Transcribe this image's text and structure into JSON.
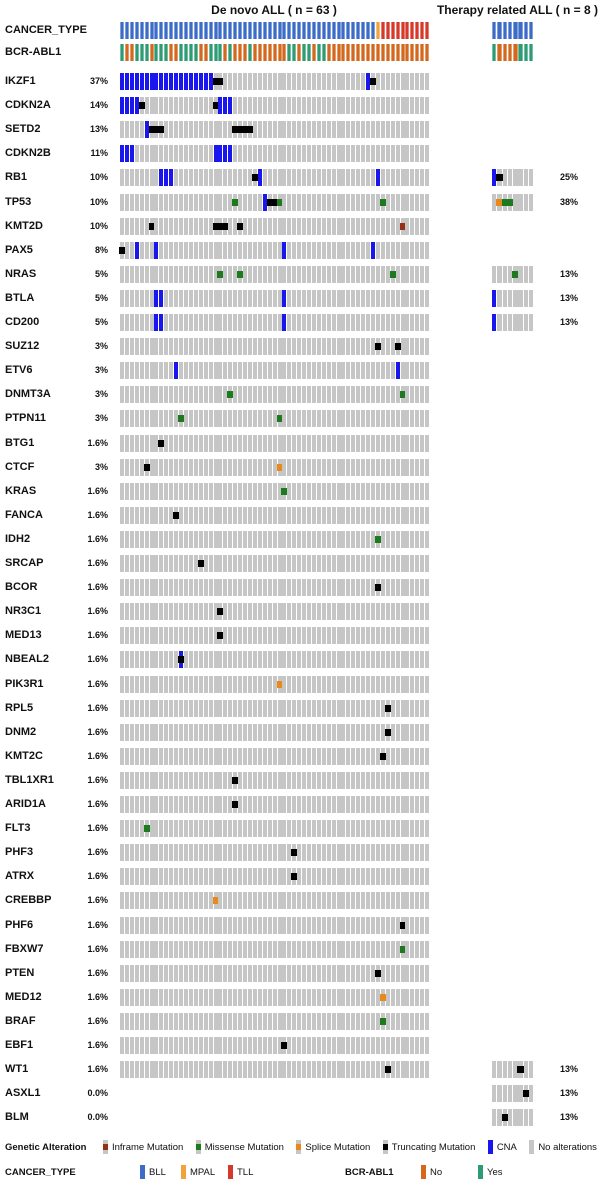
{
  "chart_data": {
    "type": "heatmap",
    "subtype": "oncoprint",
    "panels": [
      {
        "title": "De novo ALL ( n = 63 )",
        "n": 63
      },
      {
        "title": "Therapy related ALL ( n = 8 )",
        "n": 8
      }
    ],
    "colors": {
      "bll": "#3D6CC7",
      "mpal": "#F0A23C",
      "tll": "#D5392B",
      "bcr_no": "#D2691E",
      "bcr_yes": "#2D9C74",
      "cna": "#1A17EE",
      "missense": "#1E7A1E",
      "splice": "#E8891D",
      "inframe": "#963117",
      "truncating": "#000000",
      "none": "#C6C6C6"
    },
    "pattern_key": {
      "B": "bll",
      "M": "mpal",
      "T": "tll",
      "G": "bcr_yes",
      "O": "bcr_no"
    },
    "clinical_tracks": [
      {
        "label": "CANCER_TYPE",
        "left": "BBBBBBBBBBBBBBBBBBBBBBBBBBBBBBBBBBBBBBBBBBBBBBBBBBBBMTTTTTTTTTT",
        "right": "BBBBBBBB"
      },
      {
        "label": "BCR-ABL1",
        "left": "GOOGGGOGGGOOGGGGOOGGGOGOOOGOOOOOOOGGOGGOGGOOOOOOOOOOOOOOOOOOOOO",
        "right": "GOOOOGGG"
      }
    ],
    "genes": [
      {
        "name": "IKZF1",
        "pct": "37%",
        "left_grid": true,
        "alts": {
          "cna": [
            1,
            2,
            3,
            4,
            5,
            6,
            7,
            8,
            9,
            10,
            11,
            12,
            13,
            14,
            15,
            16,
            17,
            18,
            19,
            51
          ],
          "trunc": [
            20,
            21,
            52
          ]
        },
        "right": null
      },
      {
        "name": "CDKN2A",
        "pct": "14%",
        "left_grid": true,
        "alts": {
          "cna": [
            1,
            2,
            3,
            4,
            21,
            22,
            23
          ],
          "trunc": [
            5,
            20
          ]
        },
        "right": null
      },
      {
        "name": "SETD2",
        "pct": "13%",
        "left_grid": true,
        "alts": {
          "cna": [
            6
          ],
          "trunc": [
            7,
            8,
            9,
            24,
            25,
            26,
            27
          ]
        },
        "right": null
      },
      {
        "name": "CDKN2B",
        "pct": "11%",
        "left_grid": true,
        "alts": {
          "cna": [
            1,
            2,
            3,
            20,
            21,
            22,
            23
          ]
        },
        "right": null
      },
      {
        "name": "RB1",
        "pct": "10%",
        "left_grid": true,
        "alts": {
          "cna": [
            9,
            10,
            11,
            29,
            53
          ],
          "trunc": [
            28
          ]
        },
        "right": {
          "pct": "25%",
          "alts": {
            "cna": [
              1
            ],
            "trunc": [
              2
            ]
          }
        }
      },
      {
        "name": "TP53",
        "pct": "10%",
        "left_grid": true,
        "alts": {
          "missense": [
            24,
            33,
            54
          ],
          "cna": [
            30
          ],
          "trunc": [
            31,
            32
          ]
        },
        "right": {
          "pct": "38%",
          "alts": {
            "splice": [
              2
            ],
            "missense": [
              3,
              4
            ]
          }
        }
      },
      {
        "name": "KMT2D",
        "pct": "10%",
        "left_grid": true,
        "alts": {
          "trunc": [
            7,
            20,
            21,
            22,
            25
          ],
          "inframe": [
            58
          ]
        },
        "right": null
      },
      {
        "name": "PAX5",
        "pct": "8%",
        "left_grid": true,
        "alts": {
          "trunc": [
            1
          ],
          "cna": [
            4,
            8,
            34,
            52
          ]
        },
        "right": null
      },
      {
        "name": "NRAS",
        "pct": "5%",
        "left_grid": true,
        "alts": {
          "missense": [
            21,
            25,
            56
          ]
        },
        "right": {
          "pct": "13%",
          "alts": {
            "missense": [
              5
            ]
          }
        }
      },
      {
        "name": "BTLA",
        "pct": "5%",
        "left_grid": true,
        "alts": {
          "cna": [
            8,
            9,
            34
          ]
        },
        "right": {
          "pct": "13%",
          "alts": {
            "cna": [
              1
            ]
          }
        }
      },
      {
        "name": "CD200",
        "pct": "5%",
        "left_grid": true,
        "alts": {
          "cna": [
            8,
            9,
            34
          ]
        },
        "right": {
          "pct": "13%",
          "alts": {
            "cna": [
              1
            ]
          }
        }
      },
      {
        "name": "SUZ12",
        "pct": "3%",
        "left_grid": true,
        "alts": {
          "trunc": [
            53,
            57
          ]
        },
        "right": null
      },
      {
        "name": "ETV6",
        "pct": "3%",
        "left_grid": true,
        "alts": {
          "cna": [
            12,
            57
          ]
        },
        "right": null
      },
      {
        "name": "DNMT3A",
        "pct": "3%",
        "left_grid": true,
        "alts": {
          "missense": [
            23,
            58
          ]
        },
        "right": null
      },
      {
        "name": "PTPN11",
        "pct": "3%",
        "left_grid": true,
        "alts": {
          "missense": [
            13,
            33
          ]
        },
        "right": null
      },
      {
        "name": "BTG1",
        "pct": "1.6%",
        "left_grid": true,
        "alts": {
          "trunc": [
            9
          ]
        },
        "right": null
      },
      {
        "name": "CTCF",
        "pct": "3%",
        "left_grid": true,
        "alts": {
          "trunc": [
            6
          ],
          "splice": [
            33
          ]
        },
        "right": null
      },
      {
        "name": "KRAS",
        "pct": "1.6%",
        "left_grid": true,
        "alts": {
          "missense": [
            34
          ]
        },
        "right": null
      },
      {
        "name": "FANCA",
        "pct": "1.6%",
        "left_grid": true,
        "alts": {
          "trunc": [
            12
          ]
        },
        "right": null
      },
      {
        "name": "IDH2",
        "pct": "1.6%",
        "left_grid": true,
        "alts": {
          "missense": [
            53
          ]
        },
        "right": null
      },
      {
        "name": "SRCAP",
        "pct": "1.6%",
        "left_grid": true,
        "alts": {
          "trunc": [
            17
          ]
        },
        "right": null
      },
      {
        "name": "BCOR",
        "pct": "1.6%",
        "left_grid": true,
        "alts": {
          "trunc": [
            53
          ]
        },
        "right": null
      },
      {
        "name": "NR3C1",
        "pct": "1.6%",
        "left_grid": true,
        "alts": {
          "trunc": [
            21
          ]
        },
        "right": null
      },
      {
        "name": "MED13",
        "pct": "1.6%",
        "left_grid": true,
        "alts": {
          "trunc": [
            21
          ]
        },
        "right": null
      },
      {
        "name": "NBEAL2",
        "pct": "1.6%",
        "left_grid": true,
        "alts": {
          "cna": [
            13
          ],
          "trunc": [
            13
          ]
        },
        "right": null
      },
      {
        "name": "PIK3R1",
        "pct": "1.6%",
        "left_grid": true,
        "alts": {
          "splice": [
            33
          ]
        },
        "right": null
      },
      {
        "name": "RPL5",
        "pct": "1.6%",
        "left_grid": true,
        "alts": {
          "trunc": [
            55
          ]
        },
        "right": null
      },
      {
        "name": "DNM2",
        "pct": "1.6%",
        "left_grid": true,
        "alts": {
          "trunc": [
            55
          ]
        },
        "right": null
      },
      {
        "name": "KMT2C",
        "pct": "1.6%",
        "left_grid": true,
        "alts": {
          "trunc": [
            54
          ]
        },
        "right": null
      },
      {
        "name": "TBL1XR1",
        "pct": "1.6%",
        "left_grid": true,
        "alts": {
          "trunc": [
            24
          ]
        },
        "right": null
      },
      {
        "name": "ARID1A",
        "pct": "1.6%",
        "left_grid": true,
        "alts": {
          "trunc": [
            24
          ]
        },
        "right": null
      },
      {
        "name": "FLT3",
        "pct": "1.6%",
        "left_grid": true,
        "alts": {
          "missense": [
            6
          ]
        },
        "right": null
      },
      {
        "name": "PHF3",
        "pct": "1.6%",
        "left_grid": true,
        "alts": {
          "trunc": [
            36
          ]
        },
        "right": null
      },
      {
        "name": "ATRX",
        "pct": "1.6%",
        "left_grid": true,
        "alts": {
          "trunc": [
            36
          ]
        },
        "right": null
      },
      {
        "name": "CREBBP",
        "pct": "1.6%",
        "left_grid": true,
        "alts": {
          "splice": [
            20
          ]
        },
        "right": null
      },
      {
        "name": "PHF6",
        "pct": "1.6%",
        "left_grid": true,
        "alts": {
          "trunc": [
            58
          ]
        },
        "right": null
      },
      {
        "name": "FBXW7",
        "pct": "1.6%",
        "left_grid": true,
        "alts": {
          "missense": [
            58
          ]
        },
        "right": null
      },
      {
        "name": "PTEN",
        "pct": "1.6%",
        "left_grid": true,
        "alts": {
          "trunc": [
            53
          ]
        },
        "right": null
      },
      {
        "name": "MED12",
        "pct": "1.6%",
        "left_grid": true,
        "alts": {
          "splice": [
            54
          ]
        },
        "right": null
      },
      {
        "name": "BRAF",
        "pct": "1.6%",
        "left_grid": true,
        "alts": {
          "missense": [
            54
          ]
        },
        "right": null
      },
      {
        "name": "EBF1",
        "pct": "1.6%",
        "left_grid": true,
        "alts": {
          "trunc": [
            34
          ]
        },
        "right": null
      },
      {
        "name": "WT1",
        "pct": "1.6%",
        "left_grid": true,
        "alts": {
          "trunc": [
            55
          ]
        },
        "right": {
          "pct": "13%",
          "alts": {
            "trunc": [
              6
            ]
          }
        }
      },
      {
        "name": "ASXL1",
        "pct": "0.0%",
        "left_grid": false,
        "alts": {},
        "right": {
          "pct": "13%",
          "alts": {
            "trunc": [
              7
            ]
          }
        }
      },
      {
        "name": "BLM",
        "pct": "0.0%",
        "left_grid": false,
        "alts": {},
        "right": {
          "pct": "13%",
          "alts": {
            "trunc": [
              3
            ]
          }
        }
      }
    ],
    "legend": {
      "genetic_alteration_label": "Genetic Alteration",
      "genetic_items": [
        {
          "label": "Inframe Mutation",
          "type": "mut",
          "color_key": "inframe"
        },
        {
          "label": "Missense Mutation",
          "type": "mut",
          "color_key": "missense"
        },
        {
          "label": "Splice Mutation",
          "type": "mut",
          "color_key": "splice"
        },
        {
          "label": "Truncating Mutation",
          "type": "mut",
          "color_key": "truncating"
        },
        {
          "label": "CNA",
          "type": "bar",
          "color_key": "cna"
        },
        {
          "label": "No alterations",
          "type": "bar",
          "color_key": "none"
        }
      ],
      "cancer_type_label": "CANCER_TYPE",
      "cancer_items": [
        {
          "label": "BLL",
          "color_key": "bll"
        },
        {
          "label": "MPAL",
          "color_key": "mpal"
        },
        {
          "label": "TLL",
          "color_key": "tll"
        }
      ],
      "bcr_abl1_label": "BCR-ABL1",
      "bcr_items": [
        {
          "label": "No",
          "color_key": "bcr_no"
        },
        {
          "label": "Yes",
          "color_key": "bcr_yes"
        }
      ]
    }
  }
}
